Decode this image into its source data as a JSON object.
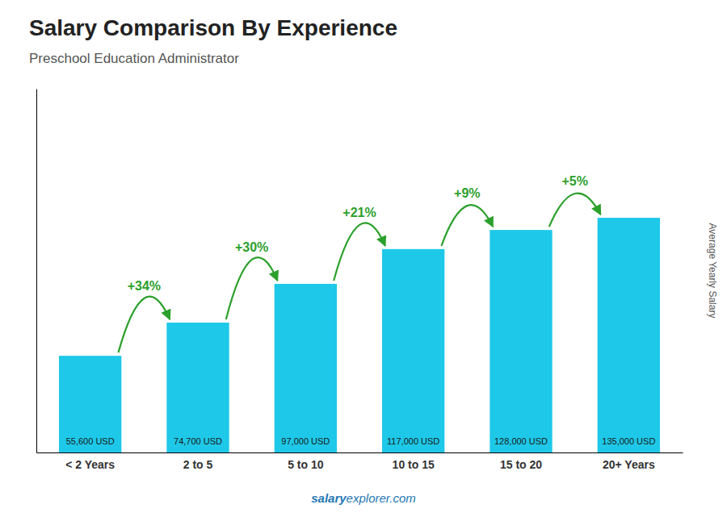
{
  "chart_data": {
    "type": "bar",
    "title": "Salary Comparison By Experience",
    "subtitle": "Preschool Education Administrator",
    "ylabel": "Average Yearly Salary",
    "categories": [
      "< 2 Years",
      "2 to 5",
      "5 to 10",
      "10 to 15",
      "15 to 20",
      "20+ Years"
    ],
    "values": [
      55600,
      74700,
      97000,
      117000,
      128000,
      135000
    ],
    "value_labels": [
      "55,600 USD",
      "74,700 USD",
      "97,000 USD",
      "117,000 USD",
      "128,000 USD",
      "135,000 USD"
    ],
    "data_labels": true,
    "color": "#1EC8E8",
    "ylim": [
      0,
      209250
    ],
    "tick_labels": "x",
    "annotations": [
      "+34%",
      "+30%",
      "+21%",
      "+9%",
      "+5%"
    ],
    "watermark": [
      "salary",
      "explorer",
      ".com"
    ]
  }
}
